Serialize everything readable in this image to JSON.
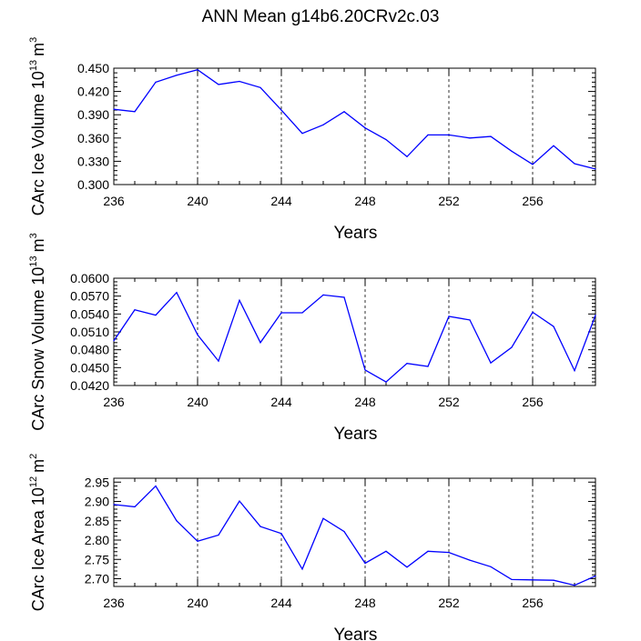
{
  "title": "ANN Mean g14b6.20CRv2c.03",
  "colors": {
    "line": "#0000ff",
    "axis": "#000000",
    "grid": "#000000"
  },
  "chart_data": [
    {
      "type": "line",
      "ylabel_main": "CArc Ice Volume 10",
      "ylabel_exp": "13",
      "ylabel_unit": "m",
      "ylabel_unit_exp": "3",
      "xlabel": "Years",
      "xlim": [
        236,
        259
      ],
      "ylim": [
        0.3,
        0.45
      ],
      "yticks": [
        "0.300",
        "0.330",
        "0.360",
        "0.390",
        "0.420",
        "0.450"
      ],
      "ytick_values": [
        0.3,
        0.33,
        0.36,
        0.39,
        0.42,
        0.45
      ],
      "xticks": [
        "236",
        "240",
        "244",
        "248",
        "252",
        "256"
      ],
      "xtick_values": [
        236,
        240,
        244,
        248,
        252,
        256
      ],
      "grid_x": [
        240,
        244,
        248,
        252,
        256
      ],
      "x": [
        236,
        237,
        238,
        239,
        240,
        241,
        242,
        243,
        244,
        245,
        246,
        247,
        248,
        249,
        250,
        251,
        252,
        253,
        254,
        255,
        256,
        257,
        258,
        259
      ],
      "values": [
        0.397,
        0.394,
        0.432,
        0.441,
        0.448,
        0.429,
        0.433,
        0.425,
        0.396,
        0.366,
        0.377,
        0.394,
        0.373,
        0.358,
        0.336,
        0.364,
        0.364,
        0.36,
        0.362,
        0.343,
        0.326,
        0.35,
        0.327,
        0.32
      ]
    },
    {
      "type": "line",
      "ylabel_main": "CArc Snow Volume 10",
      "ylabel_exp": "13",
      "ylabel_unit": "m",
      "ylabel_unit_exp": "3",
      "xlabel": "Years",
      "xlim": [
        236,
        259
      ],
      "ylim": [
        0.042,
        0.06
      ],
      "yticks": [
        "0.0420",
        "0.0450",
        "0.0480",
        "0.0510",
        "0.0540",
        "0.0570",
        "0.0600"
      ],
      "ytick_values": [
        0.042,
        0.045,
        0.048,
        0.051,
        0.054,
        0.057,
        0.06
      ],
      "xticks": [
        "236",
        "240",
        "244",
        "248",
        "252",
        "256"
      ],
      "xtick_values": [
        236,
        240,
        244,
        248,
        252,
        256
      ],
      "grid_x": [
        240,
        244,
        248,
        252,
        256
      ],
      "x": [
        236,
        237,
        238,
        239,
        240,
        241,
        242,
        243,
        244,
        245,
        246,
        247,
        248,
        249,
        250,
        251,
        252,
        253,
        254,
        255,
        256,
        257,
        258,
        259
      ],
      "values": [
        0.0495,
        0.0547,
        0.0538,
        0.0576,
        0.0505,
        0.0461,
        0.0563,
        0.0492,
        0.0542,
        0.0542,
        0.0572,
        0.0568,
        0.0446,
        0.0426,
        0.0457,
        0.0452,
        0.0536,
        0.053,
        0.0458,
        0.0484,
        0.0543,
        0.0519,
        0.0445,
        0.0538
      ]
    },
    {
      "type": "line",
      "ylabel_main": "CArc Ice Area 10",
      "ylabel_exp": "12",
      "ylabel_unit": "m",
      "ylabel_unit_exp": "2",
      "xlabel": "Years",
      "xlim": [
        236,
        259
      ],
      "ylim": [
        2.68,
        2.96
      ],
      "yticks": [
        "2.70",
        "2.75",
        "2.80",
        "2.85",
        "2.90",
        "2.95"
      ],
      "ytick_values": [
        2.7,
        2.75,
        2.8,
        2.85,
        2.9,
        2.95
      ],
      "xticks": [
        "236",
        "240",
        "244",
        "248",
        "252",
        "256"
      ],
      "xtick_values": [
        236,
        240,
        244,
        248,
        252,
        256
      ],
      "grid_x": [
        240,
        244,
        248,
        252,
        256
      ],
      "x": [
        236,
        237,
        238,
        239,
        240,
        241,
        242,
        243,
        244,
        245,
        246,
        247,
        248,
        249,
        250,
        251,
        252,
        253,
        254,
        255,
        256,
        257,
        258,
        259
      ],
      "values": [
        2.892,
        2.886,
        2.94,
        2.85,
        2.797,
        2.813,
        2.901,
        2.835,
        2.817,
        2.725,
        2.856,
        2.822,
        2.74,
        2.771,
        2.73,
        2.771,
        2.768,
        2.748,
        2.731,
        2.698,
        2.697,
        2.696,
        2.683,
        2.707
      ]
    }
  ]
}
